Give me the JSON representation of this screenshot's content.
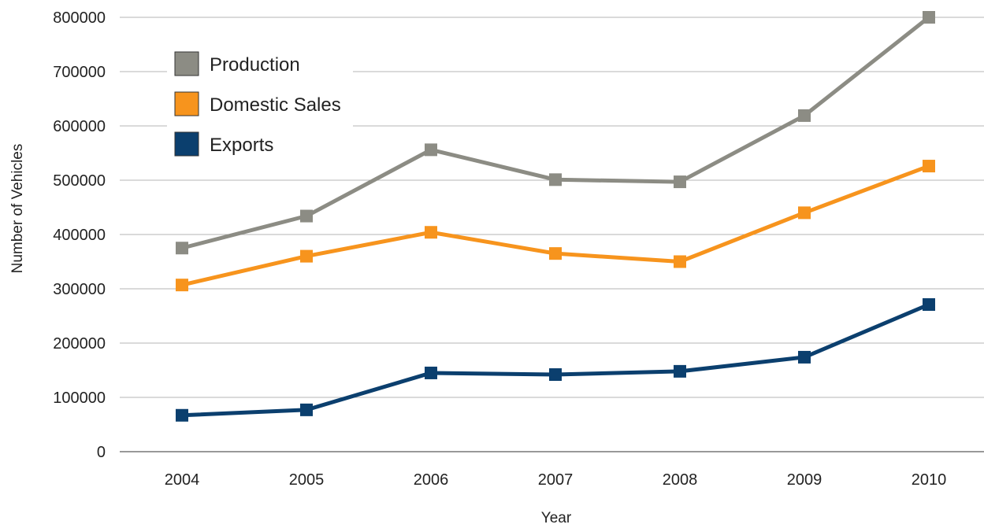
{
  "chart_data": {
    "type": "line",
    "title": "",
    "xlabel": "Year",
    "ylabel": "Number of Vehicles",
    "categories": [
      "2004",
      "2005",
      "2006",
      "2007",
      "2008",
      "2009",
      "2010"
    ],
    "ylim": [
      0,
      800000
    ],
    "yticks": [
      "0",
      "100000",
      "200000",
      "300000",
      "400000",
      "500000",
      "600000",
      "700000",
      "800000"
    ],
    "grid": true,
    "legend_position": "top-left",
    "series": [
      {
        "name": "Production",
        "color": "#8c8c84",
        "values": [
          375000,
          434000,
          556000,
          501000,
          497000,
          619000,
          800000
        ]
      },
      {
        "name": "Domestic Sales",
        "color": "#f7941d",
        "values": [
          307000,
          360000,
          404000,
          365000,
          350000,
          440000,
          526000
        ]
      },
      {
        "name": "Exports",
        "color": "#0b3f6e",
        "values": [
          67000,
          77000,
          145000,
          142000,
          148000,
          174000,
          271000
        ]
      }
    ]
  }
}
